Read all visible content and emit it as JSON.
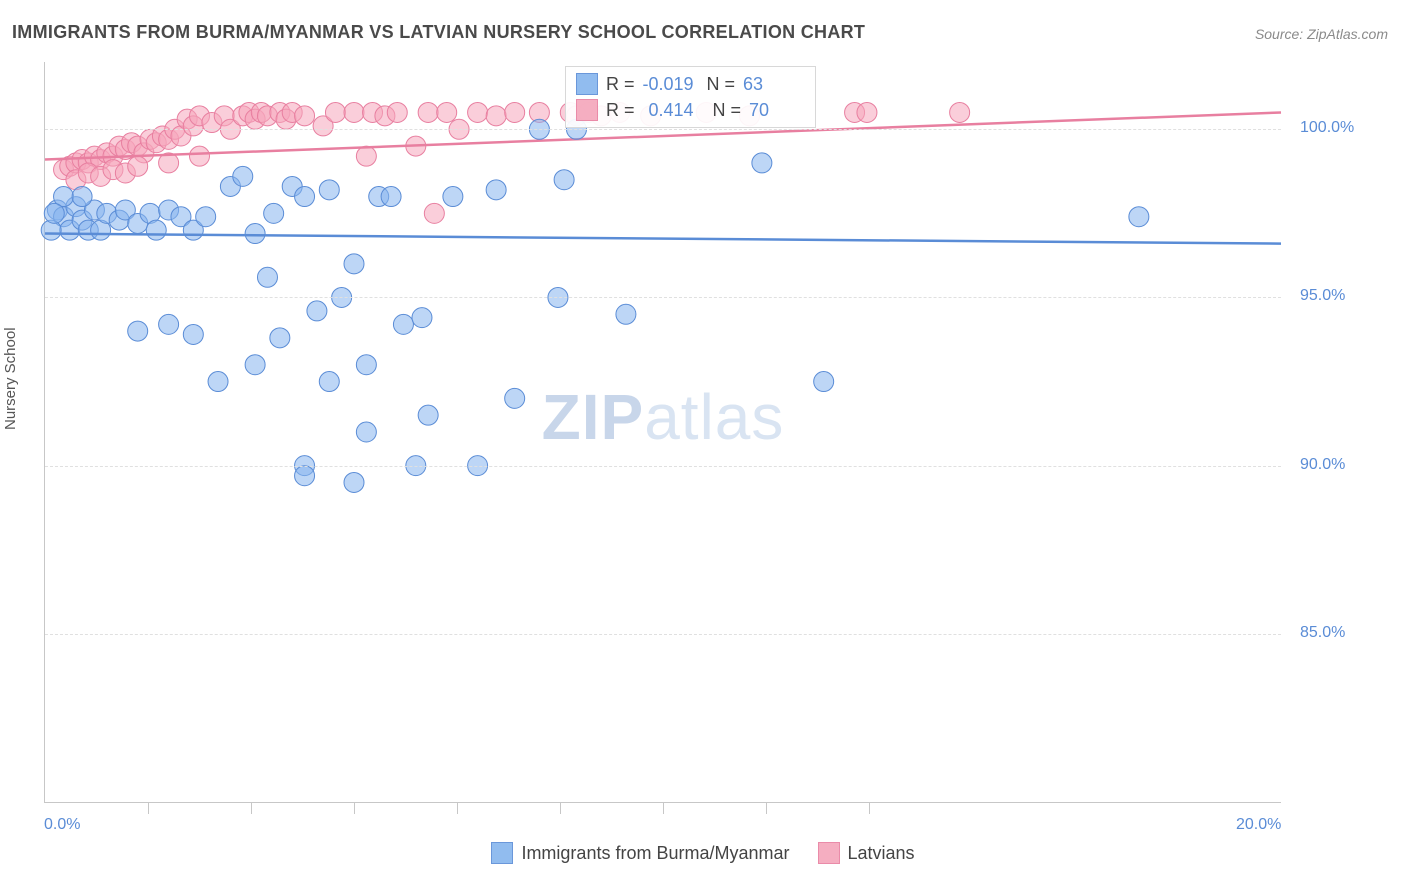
{
  "title": "IMMIGRANTS FROM BURMA/MYANMAR VS LATVIAN NURSERY SCHOOL CORRELATION CHART",
  "source_label": "Source: ZipAtlas.com",
  "watermark": {
    "zip": "ZIP",
    "atlas": "atlas"
  },
  "y_axis_label": "Nursery School",
  "bottom_legend": {
    "series1_label": "Immigrants from Burma/Myanmar",
    "series2_label": "Latvians"
  },
  "stats_box": {
    "r_label": "R =",
    "n_label": "N =",
    "series1": {
      "r": "-0.019",
      "n": "63"
    },
    "series2": {
      "r": "0.414",
      "n": "70"
    }
  },
  "chart": {
    "type": "scatter",
    "background_color": "#ffffff",
    "grid_color": "#e0e0e0",
    "axis_color": "#c7c7c7",
    "tick_label_color": "#5a8cd6",
    "tick_fontsize": 16,
    "title_fontsize": 18,
    "marker_radius": 10,
    "marker_opacity": 0.55,
    "trend_line_width": 2.5,
    "xlim": [
      0.0,
      20.0
    ],
    "ylim": [
      80.0,
      102.0
    ],
    "x_ticks_major": [
      0.0,
      20.0
    ],
    "x_ticks_minor": [
      1.67,
      3.33,
      5.0,
      6.67,
      8.33,
      10.0,
      11.67,
      13.33
    ],
    "x_tick_labels": {
      "0.0": "0.0%",
      "20.0": "20.0%"
    },
    "y_ticks": [
      85.0,
      90.0,
      95.0,
      100.0
    ],
    "y_tick_labels": {
      "85.0": "85.0%",
      "90.0": "90.0%",
      "95.0": "95.0%",
      "100.0": "100.0%"
    },
    "series": [
      {
        "name": "Immigrants from Burma/Myanmar",
        "color_fill": "#86b5ee",
        "color_stroke": "#5a8cd6",
        "trend": {
          "y_at_xmin": 96.9,
          "y_at_xmax": 96.6
        },
        "points": [
          [
            0.2,
            97.6
          ],
          [
            0.3,
            97.4
          ],
          [
            0.4,
            97.0
          ],
          [
            0.5,
            97.7
          ],
          [
            0.6,
            97.3
          ],
          [
            0.7,
            97.0
          ],
          [
            0.8,
            97.6
          ],
          [
            0.9,
            97.0
          ],
          [
            1.0,
            97.5
          ],
          [
            1.2,
            97.3
          ],
          [
            1.3,
            97.6
          ],
          [
            1.5,
            97.2
          ],
          [
            1.7,
            97.5
          ],
          [
            1.8,
            97.0
          ],
          [
            2.0,
            97.6
          ],
          [
            2.2,
            97.4
          ],
          [
            2.4,
            97.0
          ],
          [
            2.6,
            97.4
          ],
          [
            3.0,
            98.3
          ],
          [
            3.2,
            98.6
          ],
          [
            3.4,
            96.9
          ],
          [
            3.6,
            95.6
          ],
          [
            3.7,
            97.5
          ],
          [
            4.0,
            98.3
          ],
          [
            4.2,
            98.0
          ],
          [
            4.4,
            94.6
          ],
          [
            4.6,
            98.2
          ],
          [
            4.6,
            92.5
          ],
          [
            5.0,
            96.0
          ],
          [
            5.2,
            93.0
          ],
          [
            5.4,
            98.0
          ],
          [
            5.2,
            91.0
          ],
          [
            5.0,
            89.5
          ],
          [
            5.6,
            98.0
          ],
          [
            5.8,
            94.2
          ],
          [
            6.1,
            94.4
          ],
          [
            6.0,
            90.0
          ],
          [
            6.6,
            98.0
          ],
          [
            6.2,
            91.5
          ],
          [
            7.0,
            90.0
          ],
          [
            7.3,
            98.2
          ],
          [
            7.6,
            92.0
          ],
          [
            8.0,
            100.0
          ],
          [
            8.3,
            95.0
          ],
          [
            8.4,
            98.5
          ],
          [
            8.6,
            100.0
          ],
          [
            9.4,
            94.5
          ],
          [
            11.6,
            99.0
          ],
          [
            12.6,
            92.5
          ],
          [
            1.5,
            94.0
          ],
          [
            2.0,
            94.2
          ],
          [
            2.4,
            93.9
          ],
          [
            2.8,
            92.5
          ],
          [
            3.4,
            93.0
          ],
          [
            3.8,
            93.8
          ],
          [
            4.2,
            90.0
          ],
          [
            4.2,
            89.7
          ],
          [
            4.8,
            95.0
          ],
          [
            0.3,
            98.0
          ],
          [
            0.6,
            98.0
          ],
          [
            0.1,
            97.0
          ],
          [
            0.15,
            97.5
          ],
          [
            17.7,
            97.4
          ]
        ]
      },
      {
        "name": "Latvians",
        "color_fill": "#f5a6bb",
        "color_stroke": "#e87fa0",
        "trend": {
          "y_at_xmin": 99.1,
          "y_at_xmax": 100.5
        },
        "points": [
          [
            0.3,
            98.8
          ],
          [
            0.4,
            98.9
          ],
          [
            0.5,
            99.0
          ],
          [
            0.6,
            99.1
          ],
          [
            0.7,
            99.0
          ],
          [
            0.8,
            99.2
          ],
          [
            0.9,
            99.1
          ],
          [
            1.0,
            99.3
          ],
          [
            1.1,
            99.2
          ],
          [
            1.2,
            99.5
          ],
          [
            1.3,
            99.4
          ],
          [
            1.4,
            99.6
          ],
          [
            1.5,
            99.5
          ],
          [
            1.6,
            99.3
          ],
          [
            1.7,
            99.7
          ],
          [
            1.8,
            99.6
          ],
          [
            1.9,
            99.8
          ],
          [
            2.0,
            99.7
          ],
          [
            2.1,
            100.0
          ],
          [
            2.2,
            99.8
          ],
          [
            2.3,
            100.3
          ],
          [
            2.4,
            100.1
          ],
          [
            2.5,
            100.4
          ],
          [
            2.7,
            100.2
          ],
          [
            2.9,
            100.4
          ],
          [
            3.0,
            100.0
          ],
          [
            3.2,
            100.4
          ],
          [
            3.3,
            100.5
          ],
          [
            3.4,
            100.3
          ],
          [
            3.5,
            100.5
          ],
          [
            3.6,
            100.4
          ],
          [
            3.8,
            100.5
          ],
          [
            3.9,
            100.3
          ],
          [
            4.0,
            100.5
          ],
          [
            4.2,
            100.4
          ],
          [
            4.5,
            100.1
          ],
          [
            4.7,
            100.5
          ],
          [
            5.0,
            100.5
          ],
          [
            5.2,
            99.2
          ],
          [
            5.3,
            100.5
          ],
          [
            5.5,
            100.4
          ],
          [
            5.7,
            100.5
          ],
          [
            6.0,
            99.5
          ],
          [
            6.2,
            100.5
          ],
          [
            6.3,
            97.5
          ],
          [
            6.5,
            100.5
          ],
          [
            6.7,
            100.0
          ],
          [
            7.0,
            100.5
          ],
          [
            7.3,
            100.4
          ],
          [
            7.6,
            100.5
          ],
          [
            8.0,
            100.5
          ],
          [
            8.5,
            100.5
          ],
          [
            8.6,
            100.4
          ],
          [
            8.8,
            100.5
          ],
          [
            9.0,
            100.4
          ],
          [
            9.3,
            100.5
          ],
          [
            9.8,
            100.4
          ],
          [
            10.7,
            100.5
          ],
          [
            11.4,
            100.4
          ],
          [
            13.1,
            100.5
          ],
          [
            13.3,
            100.5
          ],
          [
            14.8,
            100.5
          ],
          [
            0.5,
            98.5
          ],
          [
            0.7,
            98.7
          ],
          [
            0.9,
            98.6
          ],
          [
            1.1,
            98.8
          ],
          [
            1.3,
            98.7
          ],
          [
            1.5,
            98.9
          ],
          [
            2.0,
            99.0
          ],
          [
            2.5,
            99.2
          ]
        ]
      }
    ]
  }
}
